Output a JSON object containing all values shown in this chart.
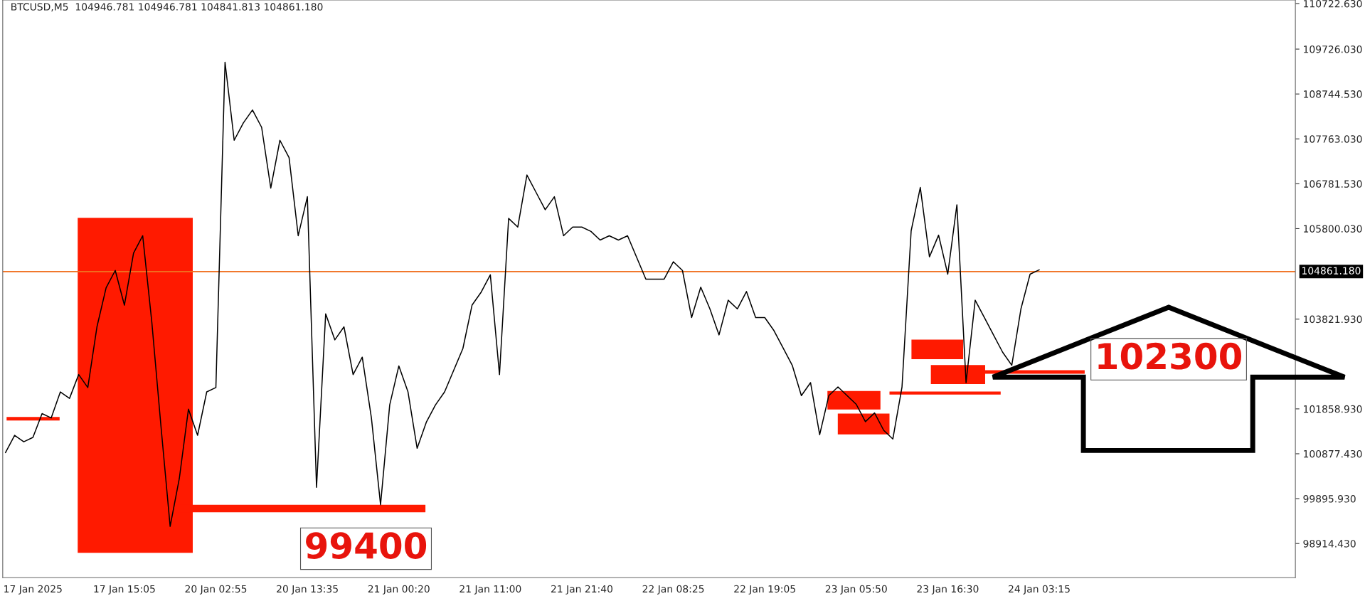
{
  "chart_data": {
    "type": "line",
    "title": "BTCUSD,M5  104946.781 104946.781 104841.813 104861.180",
    "categories": [
      null,
      null,
      null,
      "17 Jan 2025",
      null,
      null,
      null,
      null,
      null,
      null,
      null,
      null,
      null,
      "17 Jan 15:05",
      null,
      null,
      null,
      null,
      null,
      null,
      null,
      null,
      null,
      "20 Jan 02:55",
      null,
      null,
      null,
      null,
      null,
      null,
      null,
      null,
      null,
      "20 Jan 13:35",
      null,
      null,
      null,
      null,
      null,
      null,
      null,
      null,
      null,
      "21 Jan 00:20",
      null,
      null,
      null,
      null,
      null,
      null,
      null,
      null,
      null,
      "21 Jan 11:00",
      null,
      null,
      null,
      null,
      null,
      null,
      null,
      null,
      null,
      "21 Jan 21:40",
      null,
      null,
      null,
      null,
      null,
      null,
      null,
      null,
      null,
      "22 Jan 08:25",
      null,
      null,
      null,
      null,
      null,
      null,
      null,
      null,
      null,
      "22 Jan 19:05",
      null,
      null,
      null,
      null,
      null,
      null,
      null,
      null,
      null,
      "23 Jan 05:50",
      null,
      null,
      null,
      null,
      null,
      null,
      null,
      null,
      null,
      "23 Jan 16:30",
      null,
      null,
      null,
      null,
      null,
      null,
      null,
      null,
      null,
      "24 Jan 03:15",
      null,
      null,
      null,
      null,
      null,
      null,
      null,
      null,
      null,
      null,
      null,
      null,
      null,
      null,
      null,
      null,
      null,
      null,
      null,
      null,
      null,
      null,
      null,
      null,
      null,
      null,
      null,
      null
    ],
    "series": [
      {
        "color": "#000000",
        "values": [
          100902,
          101281,
          101139,
          101234,
          101755,
          101661,
          102230,
          102088,
          102609,
          102325,
          103653,
          104506,
          104886,
          104127,
          105265,
          105645,
          103748,
          101471,
          99289,
          100333,
          101851,
          101281,
          102230,
          102325,
          109439,
          107732,
          108111,
          108396,
          108016,
          106688,
          107732,
          107353,
          105645,
          106498,
          100143,
          103937,
          103368,
          103653,
          102609,
          102989,
          101661,
          99763,
          101945,
          102799,
          102230,
          100997,
          101566,
          101945,
          102230,
          102704,
          103179,
          104127,
          104412,
          104791,
          102609,
          106024,
          105835,
          106972,
          106593,
          106214,
          106498,
          105645,
          105835,
          105835,
          105740,
          105550,
          105645,
          105550,
          105645,
          105170,
          104696,
          104696,
          104696,
          105076,
          104886,
          103856,
          104520,
          104045,
          103476,
          104235,
          104045,
          104425,
          103856,
          103856,
          103571,
          103192,
          102812,
          102148,
          102433,
          101294,
          102148,
          102338,
          102148,
          101958,
          101579,
          101769,
          101390,
          101200,
          102338,
          105753,
          106701,
          105184,
          105658,
          104804,
          106322,
          102433,
          104235,
          103856,
          103476,
          103097,
          102812,
          104045,
          104804,
          104899,
          null,
          null,
          null,
          null,
          null,
          null,
          null,
          null,
          null,
          null,
          null,
          null,
          null,
          null,
          null,
          null,
          null,
          null,
          null,
          null,
          null,
          null,
          null,
          null,
          null,
          null,
          null,
          null
        ]
      }
    ],
    "ylim": [
      98170,
      110800
    ],
    "yticks": [
      {
        "value": 98914.43,
        "label": "98914.430"
      },
      {
        "value": 99895.93,
        "label": "99895.930"
      },
      {
        "value": 100877.43,
        "label": "100877.430"
      },
      {
        "value": 101858.93,
        "label": "101858.930"
      },
      {
        "value": 103821.93,
        "label": "103821.930"
      },
      {
        "value": 105800.03,
        "label": "105800.030"
      },
      {
        "value": 106781.53,
        "label": "106781.530"
      },
      {
        "value": 107763.03,
        "label": "107763.030"
      },
      {
        "value": 108744.53,
        "label": "108744.530"
      },
      {
        "value": 109726.03,
        "label": "109726.030"
      },
      {
        "value": 110722.63,
        "label": "110722.630"
      }
    ],
    "ref_lines": [
      {
        "axis": "y",
        "value": 104861.18,
        "label": "104861.180",
        "color": "#f07020"
      }
    ],
    "annotations": [
      "99400",
      "102300"
    ],
    "grid": false,
    "marker": "none",
    "line_style": "solid",
    "legend": false
  }
}
